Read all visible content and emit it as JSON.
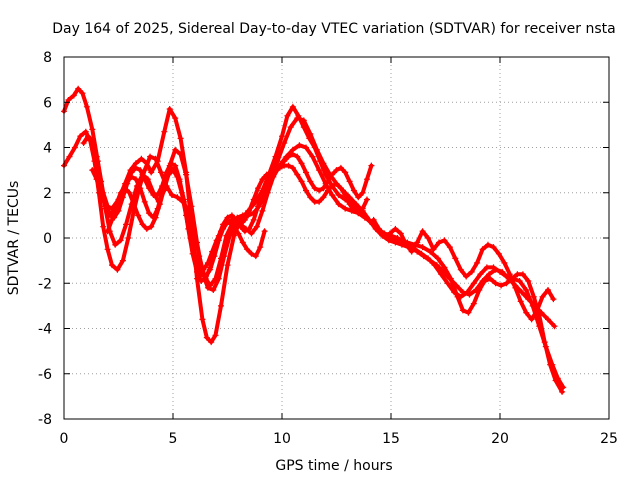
{
  "chart_data": {
    "type": "scatter",
    "title": "Day 164 of 2025, Sidereal Day-to-day VTEC variation (SDTVAR) for receiver nsta",
    "xlabel": "GPS time / hours",
    "ylabel": "SDTVAR / TECUs",
    "xlim": [
      0,
      25
    ],
    "ylim": [
      -8,
      8
    ],
    "xticks": [
      0,
      5,
      10,
      15,
      20,
      25
    ],
    "yticks": [
      -8,
      -6,
      -4,
      -2,
      0,
      2,
      4,
      6,
      8
    ],
    "grid": true,
    "marker": "+",
    "color": "#ff0000",
    "series": [
      {
        "name": "trace-1",
        "x": [
          0.0,
          0.2,
          0.45,
          0.65,
          0.85,
          1.05,
          1.3,
          1.55,
          1.8,
          2.0,
          2.2,
          2.5,
          2.8,
          3.05,
          3.3,
          3.55,
          3.8,
          4.0,
          4.3,
          4.6,
          4.85,
          5.1,
          5.35,
          5.6,
          5.85,
          6.1,
          6.35,
          6.55,
          6.75,
          6.95,
          7.2,
          7.5,
          7.8,
          8.1,
          8.45,
          8.8,
          9.1,
          9.4,
          9.7,
          10.0,
          10.25,
          10.5,
          10.75,
          11.0,
          11.25,
          11.5,
          11.75,
          12.0,
          12.3,
          12.6,
          12.9,
          13.2,
          13.5,
          13.85,
          14.15,
          14.45,
          14.75,
          15.05,
          15.4,
          15.75,
          16.1,
          16.45,
          16.8,
          17.15,
          17.45,
          17.75,
          18.05,
          18.3,
          18.55,
          18.8,
          19.05,
          19.3,
          19.55,
          19.8,
          20.05,
          20.3,
          20.55,
          20.8,
          21.05,
          21.3,
          21.55,
          21.8,
          22.05,
          22.3,
          22.55,
          22.85
        ],
        "y": [
          5.6,
          6.1,
          6.3,
          6.6,
          6.4,
          5.8,
          4.8,
          3.4,
          2.0,
          1.4,
          1.3,
          1.7,
          2.4,
          3.0,
          3.3,
          3.5,
          3.3,
          2.9,
          3.4,
          4.7,
          5.7,
          5.3,
          4.4,
          2.9,
          0.6,
          -1.8,
          -3.6,
          -4.4,
          -4.6,
          -4.3,
          -3.0,
          -1.2,
          0.1,
          0.8,
          1.2,
          1.6,
          2.1,
          2.8,
          3.6,
          4.5,
          5.4,
          5.8,
          5.4,
          4.9,
          4.4,
          4.0,
          3.4,
          2.8,
          2.3,
          1.9,
          1.7,
          1.5,
          1.2,
          0.9,
          0.6,
          0.3,
          0.1,
          0.0,
          -0.1,
          -0.2,
          -0.3,
          -0.4,
          -0.6,
          -0.9,
          -1.3,
          -1.8,
          -2.6,
          -3.2,
          -3.3,
          -2.9,
          -2.3,
          -1.9,
          -1.8,
          -2.0,
          -2.1,
          -2.0,
          -1.8,
          -1.6,
          -1.6,
          -1.9,
          -2.6,
          -3.4,
          -4.6,
          -5.6,
          -6.3,
          -6.8
        ]
      },
      {
        "name": "trace-2",
        "x": [
          0.0,
          0.25,
          0.5,
          0.75,
          1.0,
          1.2,
          1.4,
          1.6,
          1.8,
          2.0,
          2.2,
          2.45,
          2.7,
          2.95,
          3.2,
          3.45,
          3.7,
          3.95,
          4.2,
          4.45,
          4.7,
          4.95,
          5.2,
          5.45,
          5.7,
          5.95,
          6.2,
          6.45,
          6.7,
          6.95,
          7.2,
          7.45,
          7.7,
          7.95,
          8.2,
          8.45,
          8.7,
          8.95,
          9.2,
          9.5,
          9.8,
          10.1,
          10.4,
          10.7,
          11.0,
          11.3,
          11.6,
          11.9,
          12.2,
          12.5,
          12.8,
          13.1,
          13.4,
          13.7,
          14.0,
          14.3,
          14.6,
          14.9,
          15.2,
          15.5,
          15.8,
          16.1,
          16.4,
          16.7,
          17.0,
          17.3,
          17.6,
          17.9,
          18.2,
          18.5,
          18.8,
          19.1,
          19.4,
          19.7,
          20.0,
          20.3,
          20.6,
          20.9,
          21.2,
          21.5,
          21.8,
          22.1,
          22.4,
          22.65,
          22.9
        ],
        "y": [
          3.2,
          3.6,
          4.0,
          4.5,
          4.7,
          4.3,
          3.4,
          2.0,
          0.5,
          -0.5,
          -1.2,
          -1.4,
          -1.0,
          0.0,
          1.2,
          2.2,
          3.0,
          3.6,
          3.5,
          2.9,
          2.3,
          1.9,
          1.8,
          1.6,
          1.2,
          0.4,
          -0.8,
          -1.7,
          -2.1,
          -1.8,
          -0.9,
          0.1,
          0.6,
          0.9,
          1.0,
          1.0,
          1.1,
          1.4,
          1.9,
          2.6,
          3.4,
          4.2,
          4.9,
          5.3,
          5.2,
          4.6,
          3.9,
          3.3,
          2.8,
          2.4,
          2.1,
          1.8,
          1.5,
          1.2,
          0.8,
          0.4,
          0.1,
          -0.1,
          -0.2,
          -0.3,
          -0.4,
          -0.5,
          -0.7,
          -0.9,
          -1.2,
          -1.6,
          -2.0,
          -2.4,
          -2.6,
          -2.4,
          -2.0,
          -1.6,
          -1.3,
          -1.3,
          -1.5,
          -1.7,
          -1.8,
          -1.9,
          -2.3,
          -3.0,
          -3.9,
          -4.8,
          -5.6,
          -6.2,
          -6.6
        ]
      },
      {
        "name": "trace-3",
        "x": [
          0.9,
          1.1,
          1.3,
          1.5,
          1.7,
          1.9,
          2.1,
          2.35,
          2.6,
          2.85,
          3.1,
          3.35,
          3.6,
          3.85,
          4.1,
          4.35,
          4.6,
          4.85,
          5.1,
          5.35,
          5.6,
          5.85,
          6.1,
          6.35,
          6.6,
          6.85,
          7.1,
          7.35,
          7.6,
          7.85,
          8.1,
          8.35,
          8.6,
          8.85,
          9.1,
          9.35,
          9.6,
          9.9,
          10.2,
          10.5,
          10.8,
          11.1,
          11.4,
          11.7,
          12.0,
          12.3,
          12.6,
          12.9,
          13.2,
          13.5,
          13.8,
          14.1,
          14.4,
          14.7,
          15.0,
          15.3,
          15.6,
          15.9,
          16.2,
          16.5,
          16.8,
          17.1,
          17.4,
          17.7,
          18.0,
          18.3,
          18.6,
          18.9,
          19.2,
          19.5,
          19.8,
          20.1,
          20.4,
          20.7,
          21.0,
          21.3,
          21.6,
          21.9,
          22.2,
          22.5
        ],
        "y": [
          4.2,
          4.5,
          4.3,
          3.6,
          2.5,
          1.3,
          0.3,
          -0.3,
          -0.1,
          0.6,
          1.5,
          2.3,
          2.8,
          2.6,
          2.0,
          1.6,
          2.1,
          3.2,
          3.9,
          3.7,
          2.8,
          1.4,
          -0.2,
          -1.5,
          -2.2,
          -2.3,
          -1.8,
          -0.8,
          0.1,
          0.5,
          0.6,
          0.4,
          0.2,
          0.5,
          1.2,
          2.0,
          2.7,
          3.2,
          3.6,
          3.9,
          4.1,
          4.0,
          3.6,
          3.0,
          2.4,
          1.9,
          1.5,
          1.3,
          1.2,
          1.1,
          0.9,
          0.7,
          0.4,
          0.2,
          0.1,
          0.0,
          -0.2,
          -0.4,
          -0.6,
          -0.8,
          -1.0,
          -1.2,
          -1.5,
          -1.8,
          -2.1,
          -2.4,
          -2.5,
          -2.3,
          -1.9,
          -1.6,
          -1.4,
          -1.5,
          -1.8,
          -2.1,
          -2.4,
          -2.7,
          -3.0,
          -3.3,
          -3.6,
          -3.9
        ]
      },
      {
        "name": "trace-4",
        "x": [
          1.5,
          1.7,
          1.9,
          2.1,
          2.3,
          2.5,
          2.7,
          2.9,
          3.1,
          3.3,
          3.5,
          3.7,
          3.9,
          4.1,
          4.3,
          4.5,
          4.7,
          4.9,
          5.1,
          5.3,
          5.5,
          5.7,
          5.9,
          6.1,
          6.3,
          6.5,
          6.7,
          6.9,
          7.1,
          7.3,
          7.5,
          7.7,
          7.9,
          8.1,
          8.3,
          8.5,
          8.7,
          8.9,
          9.1,
          9.3,
          9.5,
          9.7,
          9.9,
          10.1,
          10.3,
          10.5,
          10.7,
          10.9,
          11.1,
          11.3,
          11.5,
          11.7,
          11.9,
          12.1,
          12.3,
          12.5,
          12.7,
          12.9,
          13.1,
          13.3,
          13.5,
          13.7,
          13.9,
          14.1
        ],
        "y": [
          2.6,
          2.0,
          1.4,
          1.0,
          0.9,
          1.2,
          1.8,
          2.4,
          2.9,
          3.1,
          3.0,
          2.6,
          2.2,
          1.9,
          1.9,
          2.3,
          2.9,
          3.3,
          3.2,
          2.6,
          1.6,
          0.4,
          -0.7,
          -1.5,
          -1.9,
          -1.8,
          -1.3,
          -0.6,
          0.1,
          0.6,
          0.9,
          1.0,
          0.8,
          0.5,
          0.3,
          0.4,
          0.8,
          1.4,
          2.0,
          2.5,
          2.8,
          3.0,
          3.2,
          3.4,
          3.6,
          3.7,
          3.6,
          3.3,
          2.9,
          2.5,
          2.2,
          2.1,
          2.2,
          2.5,
          2.8,
          3.0,
          3.1,
          2.9,
          2.5,
          2.1,
          1.8,
          2.0,
          2.6,
          3.2
        ]
      },
      {
        "name": "trace-5",
        "x": [
          2.0,
          2.2,
          2.4,
          2.6,
          2.8,
          3.0,
          3.2,
          3.4,
          3.6,
          3.8,
          4.0,
          4.2,
          4.4,
          4.6,
          4.8,
          5.0,
          5.2,
          5.4,
          5.6,
          5.8,
          6.0,
          6.2,
          6.4,
          6.6,
          6.8,
          7.0,
          7.2,
          7.4,
          7.6,
          7.8,
          8.0,
          8.2,
          8.4,
          8.6,
          8.8,
          9.0,
          9.2
        ],
        "y": [
          0.3,
          0.8,
          1.5,
          2.0,
          2.2,
          2.0,
          1.5,
          1.0,
          0.6,
          0.4,
          0.5,
          0.9,
          1.5,
          2.2,
          2.8,
          3.0,
          2.7,
          2.0,
          1.0,
          0.0,
          -0.8,
          -1.3,
          -1.4,
          -1.1,
          -0.6,
          -0.1,
          0.3,
          0.6,
          0.7,
          0.5,
          0.2,
          -0.2,
          -0.5,
          -0.7,
          -0.8,
          -0.4,
          0.3
        ]
      },
      {
        "name": "trace-6",
        "x": [
          1.3,
          1.5,
          1.7,
          1.9,
          2.1,
          2.3,
          2.5,
          2.7,
          2.9,
          3.1,
          3.3,
          3.5,
          3.7,
          3.9,
          4.1,
          4.3,
          4.5,
          4.7,
          4.9,
          5.1,
          5.3,
          5.5,
          5.7,
          5.9,
          6.1,
          6.3,
          6.5,
          6.7,
          6.9,
          7.1,
          7.3,
          7.5,
          7.7,
          7.9,
          8.1,
          8.3,
          8.5,
          8.7,
          8.9,
          9.1,
          9.3,
          9.5,
          9.7,
          9.9,
          10.1,
          10.3,
          10.5,
          10.7,
          10.9,
          11.1,
          11.3,
          11.5,
          11.7,
          11.9,
          12.1,
          12.3,
          12.5,
          12.7,
          12.9,
          13.1,
          13.3,
          13.5,
          13.7,
          13.9
        ],
        "y": [
          3.0,
          2.6,
          2.0,
          1.4,
          1.1,
          1.2,
          1.6,
          2.1,
          2.5,
          2.7,
          2.6,
          2.2,
          1.6,
          1.1,
          0.9,
          1.3,
          2.0,
          2.7,
          3.1,
          3.0,
          2.5,
          1.7,
          0.7,
          -0.3,
          -1.1,
          -1.6,
          -1.7,
          -1.4,
          -0.8,
          -0.1,
          0.4,
          0.7,
          0.8,
          0.7,
          0.6,
          0.8,
          1.2,
          1.7,
          2.2,
          2.6,
          2.8,
          2.9,
          3.0,
          3.1,
          3.2,
          3.2,
          3.1,
          2.8,
          2.5,
          2.1,
          1.8,
          1.6,
          1.6,
          1.8,
          2.1,
          2.3,
          2.4,
          2.2,
          1.9,
          1.5,
          1.2,
          1.1,
          1.3,
          1.7
        ]
      },
      {
        "name": "trace-7",
        "x": [
          14.2,
          14.45,
          14.7,
          14.95,
          15.2,
          15.45,
          15.7,
          15.95,
          16.2,
          16.45,
          16.7,
          16.95,
          17.2,
          17.45,
          17.7,
          17.95,
          18.2,
          18.45,
          18.7,
          18.95,
          19.2,
          19.45,
          19.7,
          19.95,
          20.2,
          20.45,
          20.7,
          20.95,
          21.2,
          21.45,
          21.7,
          21.95,
          22.2,
          22.45
        ],
        "y": [
          0.8,
          0.4,
          0.1,
          0.2,
          0.4,
          0.2,
          -0.3,
          -0.6,
          -0.2,
          0.3,
          0.0,
          -0.5,
          -0.2,
          -0.1,
          -0.4,
          -0.9,
          -1.4,
          -1.7,
          -1.5,
          -1.1,
          -0.5,
          -0.3,
          -0.4,
          -0.7,
          -1.1,
          -1.6,
          -2.2,
          -2.8,
          -3.3,
          -3.6,
          -3.2,
          -2.6,
          -2.3,
          -2.7
        ]
      }
    ]
  }
}
